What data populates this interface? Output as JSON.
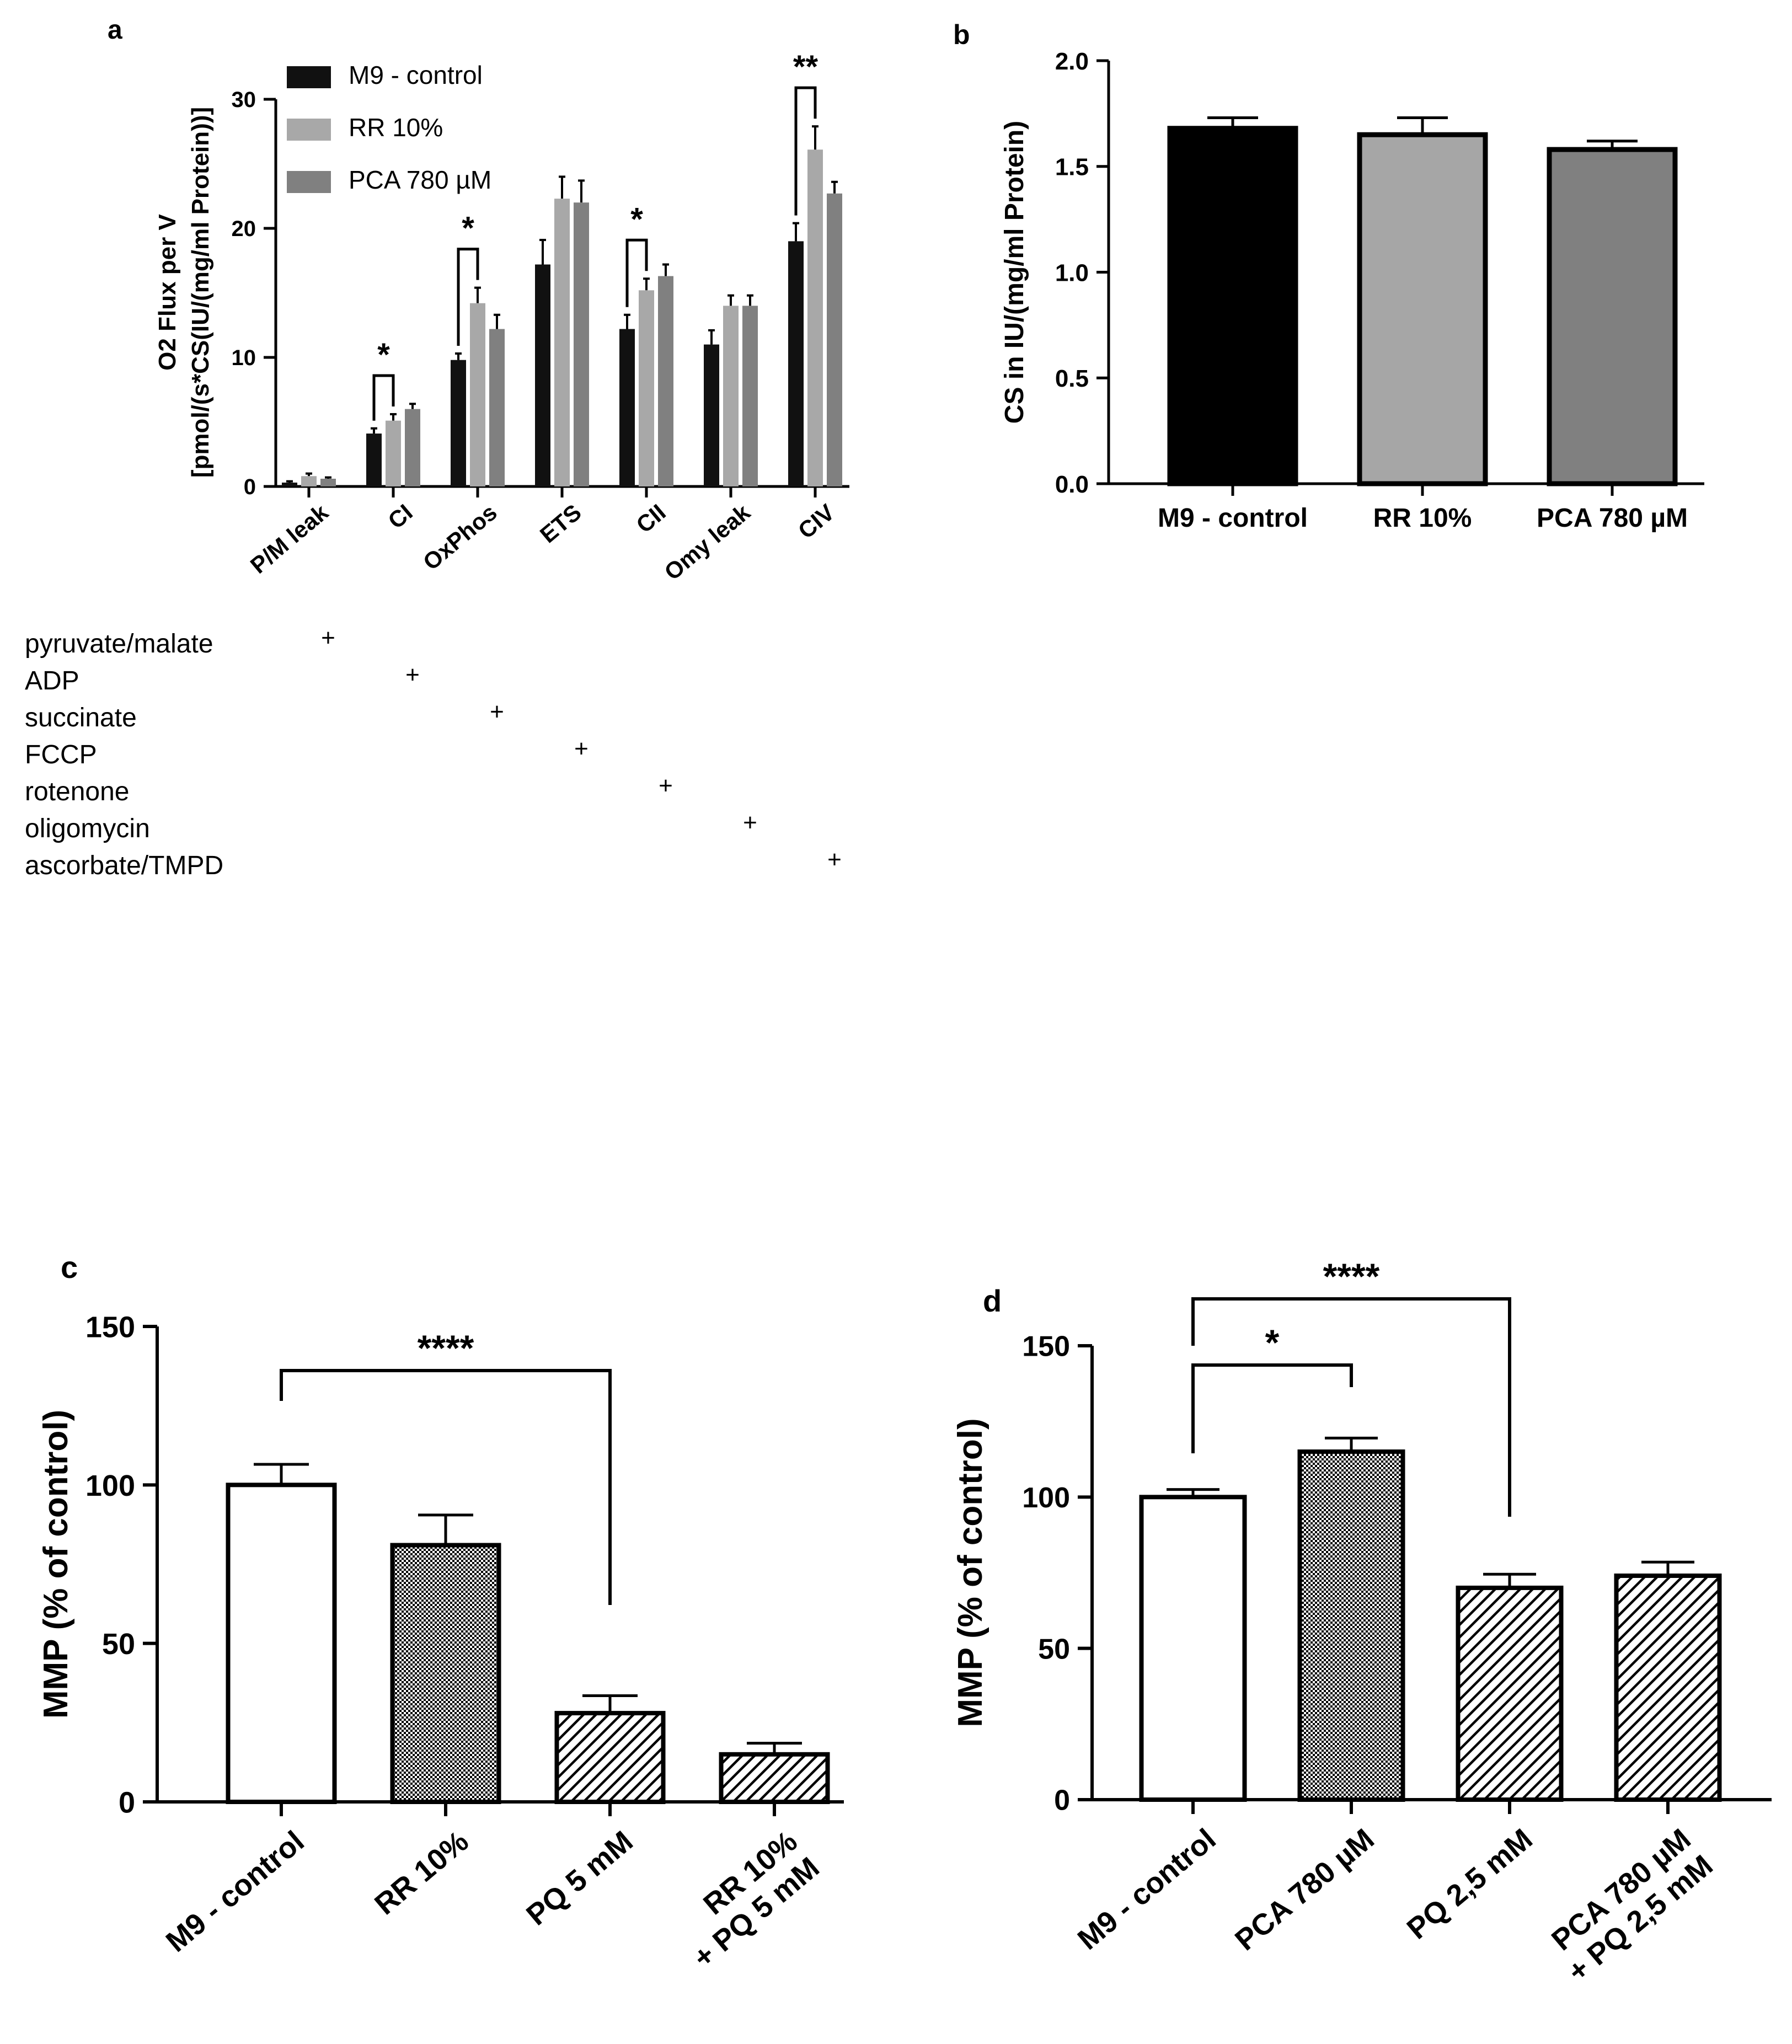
{
  "chart_data": [
    {
      "panel": "a",
      "type": "bar",
      "title": "",
      "ylabel_line1": "O2 Flux per V",
      "ylabel_line2": "[pmol/(s*CS(IU/(mg/ml Protein))]",
      "xlabel": "",
      "ylim": [
        0,
        30
      ],
      "yticks": [
        "0",
        "10",
        "20",
        "30"
      ],
      "categories": [
        "P/M leak",
        "CI",
        "OxPhos",
        "ETS",
        "CII",
        "Omy leak",
        "CIV"
      ],
      "series": [
        {
          "name": "M9 - control",
          "color": "#111111",
          "values": [
            0.3,
            4.1,
            9.8,
            17.2,
            12.2,
            11.0,
            19.0
          ],
          "errors": [
            0.1,
            0.4,
            0.5,
            1.9,
            1.1,
            1.1,
            1.4
          ]
        },
        {
          "name": "RR 10%",
          "color": "#a8a8a8",
          "values": [
            0.8,
            5.1,
            14.2,
            22.3,
            15.2,
            14.0,
            26.1
          ],
          "errors": [
            0.2,
            0.5,
            1.2,
            1.7,
            0.9,
            0.8,
            1.8
          ]
        },
        {
          "name": "PCA 780 µM",
          "color": "#808080",
          "values": [
            0.6,
            6.0,
            12.2,
            22.0,
            16.3,
            14.0,
            22.7
          ],
          "errors": [
            0.1,
            0.4,
            1.1,
            1.7,
            0.9,
            0.8,
            0.9
          ]
        }
      ],
      "significance": [
        {
          "category": "CI",
          "label": "*"
        },
        {
          "category": "OxPhos",
          "label": "*"
        },
        {
          "category": "CII",
          "label": "*"
        },
        {
          "category": "CIV",
          "label": "**"
        }
      ],
      "legend_position": "top-left",
      "substrate_table": [
        {
          "label": "pyruvate/malate",
          "mark": "+",
          "column": 0
        },
        {
          "label": "ADP",
          "mark": "+",
          "column": 1
        },
        {
          "label": "succinate",
          "mark": "+",
          "column": 2
        },
        {
          "label": "FCCP",
          "mark": "+",
          "column": 3
        },
        {
          "label": "rotenone",
          "mark": "+",
          "column": 4
        },
        {
          "label": "oligomycin",
          "mark": "+",
          "column": 5
        },
        {
          "label": "ascorbate/TMPD",
          "mark": "+",
          "column": 6
        }
      ]
    },
    {
      "panel": "b",
      "type": "bar",
      "title": "",
      "ylabel": "CS in IU/(mg/ml Protein)",
      "xlabel": "",
      "ylim": [
        0,
        2.0
      ],
      "yticks": [
        "0.0",
        "0.5",
        "1.0",
        "1.5",
        "2.0"
      ],
      "categories": [
        "M9 - control",
        "RR 10%",
        "PCA 780 µM"
      ],
      "values": [
        1.68,
        1.65,
        1.58
      ],
      "errors": [
        0.05,
        0.08,
        0.04
      ],
      "colors": [
        "#000000",
        "#a6a6a6",
        "#808080"
      ]
    },
    {
      "panel": "c",
      "type": "bar",
      "title": "",
      "ylabel": "MMP (% of control)",
      "xlabel": "",
      "ylim": [
        0,
        150
      ],
      "yticks": [
        "0",
        "50",
        "100",
        "150"
      ],
      "categories": [
        [
          "M9 - control"
        ],
        [
          "RR 10%"
        ],
        [
          "PQ 5 mM"
        ],
        [
          "RR 10%",
          "+ PQ 5 mM"
        ]
      ],
      "values": [
        100,
        81,
        28,
        15
      ],
      "errors": [
        6.5,
        9.5,
        5.5,
        3.5
      ],
      "patterns": [
        "open",
        "checker",
        "hatch",
        "hatch"
      ],
      "significance": [
        {
          "from": 0,
          "to": 2,
          "label": "****"
        }
      ]
    },
    {
      "panel": "d",
      "type": "bar",
      "title": "",
      "ylabel": "MMP (% of control)",
      "xlabel": "",
      "ylim": [
        0,
        150
      ],
      "yticks": [
        "0",
        "50",
        "100",
        "150"
      ],
      "categories": [
        [
          "M9 - control"
        ],
        [
          "PCA 780 µM"
        ],
        [
          "PQ 2,5 mM"
        ],
        [
          "PCA 780 µM",
          "+ PQ 2,5 mM"
        ]
      ],
      "values": [
        100,
        115,
        70,
        74
      ],
      "errors": [
        2.5,
        4.5,
        4.5,
        4.5
      ],
      "patterns": [
        "open",
        "checker",
        "hatch",
        "hatch"
      ],
      "significance": [
        {
          "from": 0,
          "to": 1,
          "label": "*"
        },
        {
          "from": 0,
          "to": 2,
          "label": "****"
        }
      ]
    }
  ]
}
